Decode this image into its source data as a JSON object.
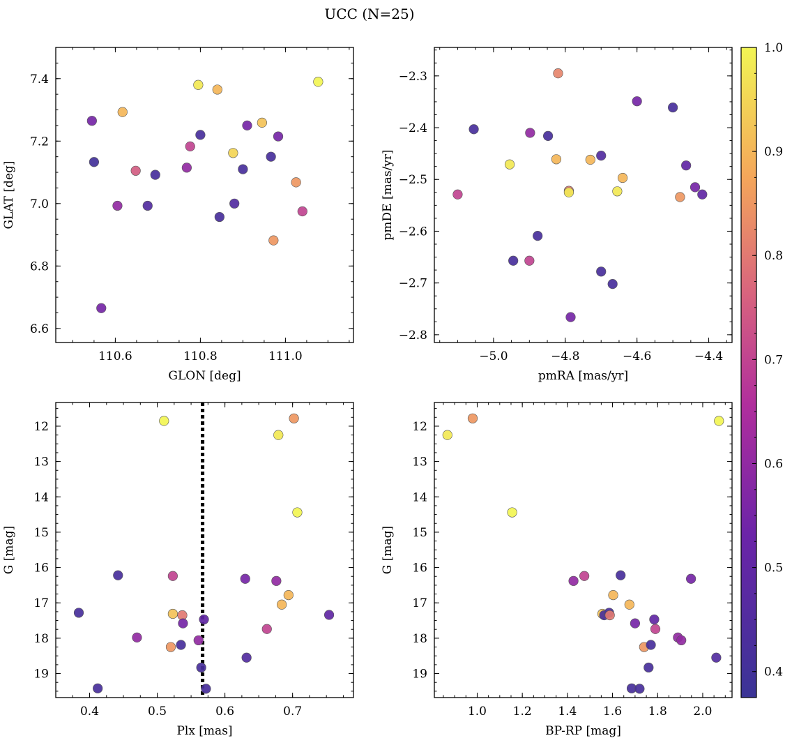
{
  "title": "UCC (N=25)",
  "colorbar": {
    "range": [
      0.375,
      1.0
    ],
    "ticks": [
      "0.4",
      "0.5",
      "0.6",
      "0.7",
      "0.8",
      "0.9",
      "1.0"
    ]
  },
  "chart_data": [
    {
      "type": "scatter",
      "panel": "top-left",
      "xlabel": "GLON [deg]",
      "ylabel": "GLAT [deg]",
      "xlim": [
        110.46,
        111.16
      ],
      "ylim": [
        6.555,
        7.5
      ],
      "xticks": [
        "110.6",
        "110.8",
        "111.0"
      ],
      "yticks": [
        "6.6",
        "6.8",
        "7.0",
        "7.2",
        "7.4"
      ],
      "y_inverted": false,
      "points": [
        {
          "x": 110.545,
          "y": 7.265,
          "c": 0.55
        },
        {
          "x": 110.55,
          "y": 7.133,
          "c": 0.4
        },
        {
          "x": 110.567,
          "y": 6.665,
          "c": 0.55
        },
        {
          "x": 110.605,
          "y": 6.993,
          "c": 0.6
        },
        {
          "x": 110.617,
          "y": 7.293,
          "c": 0.9
        },
        {
          "x": 110.648,
          "y": 7.105,
          "c": 0.75
        },
        {
          "x": 110.676,
          "y": 6.993,
          "c": 0.45
        },
        {
          "x": 110.694,
          "y": 7.092,
          "c": 0.42
        },
        {
          "x": 110.768,
          "y": 7.115,
          "c": 0.6
        },
        {
          "x": 110.776,
          "y": 7.183,
          "c": 0.7
        },
        {
          "x": 110.795,
          "y": 7.38,
          "c": 0.98
        },
        {
          "x": 110.8,
          "y": 7.22,
          "c": 0.42
        },
        {
          "x": 110.84,
          "y": 7.365,
          "c": 0.9
        },
        {
          "x": 110.845,
          "y": 6.957,
          "c": 0.42
        },
        {
          "x": 110.877,
          "y": 7.162,
          "c": 0.95
        },
        {
          "x": 110.88,
          "y": 7.0,
          "c": 0.45
        },
        {
          "x": 110.9,
          "y": 7.11,
          "c": 0.42
        },
        {
          "x": 110.91,
          "y": 7.25,
          "c": 0.55
        },
        {
          "x": 110.945,
          "y": 7.259,
          "c": 0.92
        },
        {
          "x": 110.966,
          "y": 7.15,
          "c": 0.42
        },
        {
          "x": 110.972,
          "y": 6.882,
          "c": 0.85
        },
        {
          "x": 110.983,
          "y": 7.215,
          "c": 0.55
        },
        {
          "x": 111.025,
          "y": 7.068,
          "c": 0.85
        },
        {
          "x": 111.04,
          "y": 6.975,
          "c": 0.7
        },
        {
          "x": 111.077,
          "y": 7.39,
          "c": 1.0
        }
      ]
    },
    {
      "type": "scatter",
      "panel": "top-right",
      "xlabel": "pmRA [mas/yr]",
      "ylabel": "pmDE [mas/yr]",
      "xlim": [
        -5.165,
        -4.335
      ],
      "ylim": [
        -2.815,
        -2.245
      ],
      "xticks": [
        "−5.0",
        "−4.8",
        "−4.6",
        "−4.4"
      ],
      "yticks": [
        "−2.3",
        "−2.4",
        "−2.5",
        "−2.6",
        "−2.7",
        "−2.8"
      ],
      "y_inverted": false,
      "points": [
        {
          "x": -5.1,
          "y": -2.529,
          "c": 0.7
        },
        {
          "x": -5.055,
          "y": -2.403,
          "c": 0.42
        },
        {
          "x": -4.955,
          "y": -2.471,
          "c": 0.98
        },
        {
          "x": -4.945,
          "y": -2.657,
          "c": 0.42
        },
        {
          "x": -4.9,
          "y": -2.657,
          "c": 0.7
        },
        {
          "x": -4.898,
          "y": -2.41,
          "c": 0.6
        },
        {
          "x": -4.877,
          "y": -2.609,
          "c": 0.42
        },
        {
          "x": -4.848,
          "y": -2.416,
          "c": 0.42
        },
        {
          "x": -4.825,
          "y": -2.461,
          "c": 0.9
        },
        {
          "x": -4.82,
          "y": -2.295,
          "c": 0.82
        },
        {
          "x": -4.79,
          "y": -2.522,
          "c": 0.8
        },
        {
          "x": -4.79,
          "y": -2.525,
          "c": 0.98
        },
        {
          "x": -4.785,
          "y": -2.766,
          "c": 0.55
        },
        {
          "x": -4.73,
          "y": -2.462,
          "c": 0.9
        },
        {
          "x": -4.7,
          "y": -2.454,
          "c": 0.45
        },
        {
          "x": -4.7,
          "y": -2.678,
          "c": 0.42
        },
        {
          "x": -4.668,
          "y": -2.702,
          "c": 0.42
        },
        {
          "x": -4.655,
          "y": -2.523,
          "c": 0.98
        },
        {
          "x": -4.64,
          "y": -2.497,
          "c": 0.9
        },
        {
          "x": -4.6,
          "y": -2.349,
          "c": 0.55
        },
        {
          "x": -4.5,
          "y": -2.361,
          "c": 0.42
        },
        {
          "x": -4.48,
          "y": -2.534,
          "c": 0.85
        },
        {
          "x": -4.463,
          "y": -2.473,
          "c": 0.5
        },
        {
          "x": -4.438,
          "y": -2.515,
          "c": 0.55
        },
        {
          "x": -4.418,
          "y": -2.529,
          "c": 0.5
        }
      ]
    },
    {
      "type": "scatter",
      "panel": "bottom-left",
      "xlabel": "Plx [mas]",
      "ylabel": "G [mag]",
      "xlim": [
        0.35,
        0.79
      ],
      "ylim": [
        19.68,
        11.33
      ],
      "xticks": [
        "0.4",
        "0.5",
        "0.6",
        "0.7"
      ],
      "yticks": [
        "12",
        "13",
        "14",
        "15",
        "16",
        "17",
        "18",
        "19"
      ],
      "y_inverted": true,
      "vline": 0.567,
      "points": [
        {
          "x": 0.384,
          "y": 17.28,
          "c": 0.42
        },
        {
          "x": 0.412,
          "y": 19.42,
          "c": 0.42
        },
        {
          "x": 0.442,
          "y": 16.22,
          "c": 0.42
        },
        {
          "x": 0.47,
          "y": 17.98,
          "c": 0.6
        },
        {
          "x": 0.51,
          "y": 11.85,
          "c": 1.0
        },
        {
          "x": 0.52,
          "y": 18.25,
          "c": 0.85
        },
        {
          "x": 0.523,
          "y": 16.24,
          "c": 0.7
        },
        {
          "x": 0.523,
          "y": 17.31,
          "c": 0.92
        },
        {
          "x": 0.535,
          "y": 18.19,
          "c": 0.42
        },
        {
          "x": 0.537,
          "y": 17.35,
          "c": 0.8
        },
        {
          "x": 0.538,
          "y": 17.58,
          "c": 0.55
        },
        {
          "x": 0.561,
          "y": 18.06,
          "c": 0.6
        },
        {
          "x": 0.565,
          "y": 18.83,
          "c": 0.42
        },
        {
          "x": 0.569,
          "y": 17.47,
          "c": 0.5
        },
        {
          "x": 0.572,
          "y": 19.43,
          "c": 0.42
        },
        {
          "x": 0.63,
          "y": 16.32,
          "c": 0.55
        },
        {
          "x": 0.632,
          "y": 18.55,
          "c": 0.45
        },
        {
          "x": 0.662,
          "y": 17.74,
          "c": 0.7
        },
        {
          "x": 0.676,
          "y": 16.38,
          "c": 0.6
        },
        {
          "x": 0.679,
          "y": 12.25,
          "c": 0.98
        },
        {
          "x": 0.684,
          "y": 17.05,
          "c": 0.9
        },
        {
          "x": 0.694,
          "y": 16.78,
          "c": 0.9
        },
        {
          "x": 0.702,
          "y": 11.78,
          "c": 0.85
        },
        {
          "x": 0.707,
          "y": 14.44,
          "c": 1.0
        },
        {
          "x": 0.754,
          "y": 17.34,
          "c": 0.5
        }
      ]
    },
    {
      "type": "scatter",
      "panel": "bottom-right",
      "xlabel": "BP-RP [mag]",
      "ylabel": "G [mag]",
      "xlim": [
        0.81,
        2.13
      ],
      "ylim": [
        19.68,
        11.33
      ],
      "xticks": [
        "1.0",
        "1.2",
        "1.4",
        "1.6",
        "1.8",
        "2.0"
      ],
      "yticks": [
        "12",
        "13",
        "14",
        "15",
        "16",
        "17",
        "18",
        "19"
      ],
      "y_inverted": true,
      "points": [
        {
          "x": 0.868,
          "y": 12.25,
          "c": 0.98
        },
        {
          "x": 0.98,
          "y": 11.78,
          "c": 0.85
        },
        {
          "x": 1.155,
          "y": 14.44,
          "c": 1.0
        },
        {
          "x": 1.427,
          "y": 16.38,
          "c": 0.6
        },
        {
          "x": 1.475,
          "y": 16.24,
          "c": 0.7
        },
        {
          "x": 1.555,
          "y": 17.31,
          "c": 0.92
        },
        {
          "x": 1.563,
          "y": 17.35,
          "c": 0.42
        },
        {
          "x": 1.585,
          "y": 17.28,
          "c": 0.42
        },
        {
          "x": 1.588,
          "y": 17.35,
          "c": 0.8
        },
        {
          "x": 1.603,
          "y": 16.78,
          "c": 0.9
        },
        {
          "x": 1.636,
          "y": 16.22,
          "c": 0.42
        },
        {
          "x": 1.675,
          "y": 17.05,
          "c": 0.9
        },
        {
          "x": 1.685,
          "y": 19.42,
          "c": 0.42
        },
        {
          "x": 1.7,
          "y": 17.58,
          "c": 0.55
        },
        {
          "x": 1.72,
          "y": 19.43,
          "c": 0.42
        },
        {
          "x": 1.74,
          "y": 18.25,
          "c": 0.85
        },
        {
          "x": 1.76,
          "y": 18.83,
          "c": 0.42
        },
        {
          "x": 1.77,
          "y": 18.19,
          "c": 0.42
        },
        {
          "x": 1.785,
          "y": 17.47,
          "c": 0.5
        },
        {
          "x": 1.79,
          "y": 17.74,
          "c": 0.7
        },
        {
          "x": 1.89,
          "y": 17.98,
          "c": 0.6
        },
        {
          "x": 1.905,
          "y": 18.06,
          "c": 0.6
        },
        {
          "x": 1.948,
          "y": 16.32,
          "c": 0.55
        },
        {
          "x": 2.06,
          "y": 18.55,
          "c": 0.45
        },
        {
          "x": 2.072,
          "y": 11.85,
          "c": 1.0
        }
      ]
    }
  ]
}
